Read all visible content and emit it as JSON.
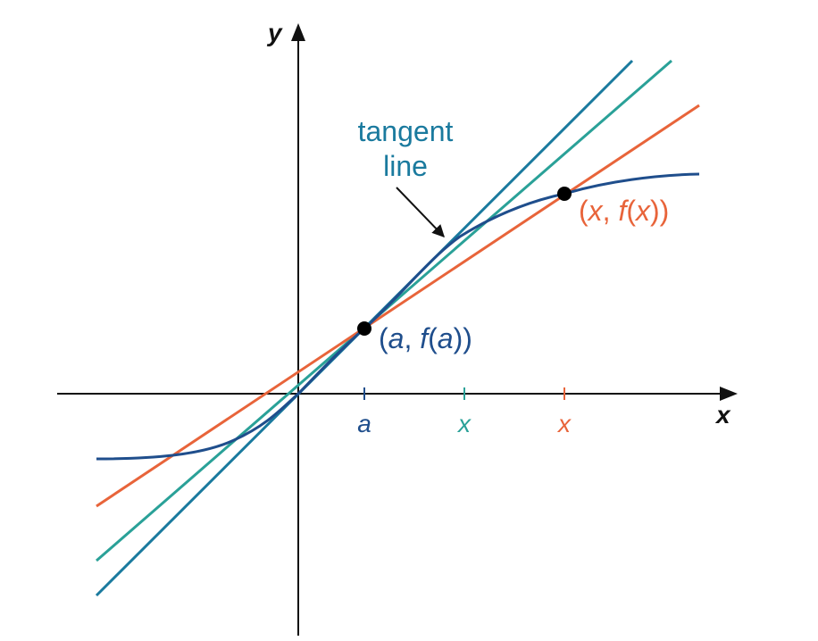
{
  "axes": {
    "x_label": "x",
    "y_label": "y"
  },
  "ticks": [
    {
      "label": "a",
      "color": "#1f4e8c"
    },
    {
      "label": "x",
      "color": "#2aa198"
    },
    {
      "label": "x",
      "color": "#e8643a"
    }
  ],
  "annotation": {
    "line1": "tangent",
    "line2": "line",
    "color": "#1a7a9e"
  },
  "points": [
    {
      "label_a": "(",
      "label_b": "a",
      "label_c": ", ",
      "label_d": "f",
      "label_e": "(",
      "label_f": "a",
      "label_g": "))",
      "color": "#1f4e8c"
    },
    {
      "label_a": "(",
      "label_b": "x",
      "label_c": ", ",
      "label_d": "f",
      "label_e": "(",
      "label_f": "x",
      "label_g": "))",
      "color": "#e8643a"
    }
  ],
  "colors": {
    "curve": "#1f4e8c",
    "tangent": "#1a7a9e",
    "secant_near": "#2aa198",
    "secant_far": "#e8643a",
    "axis": "#111111",
    "point": "#000000"
  }
}
